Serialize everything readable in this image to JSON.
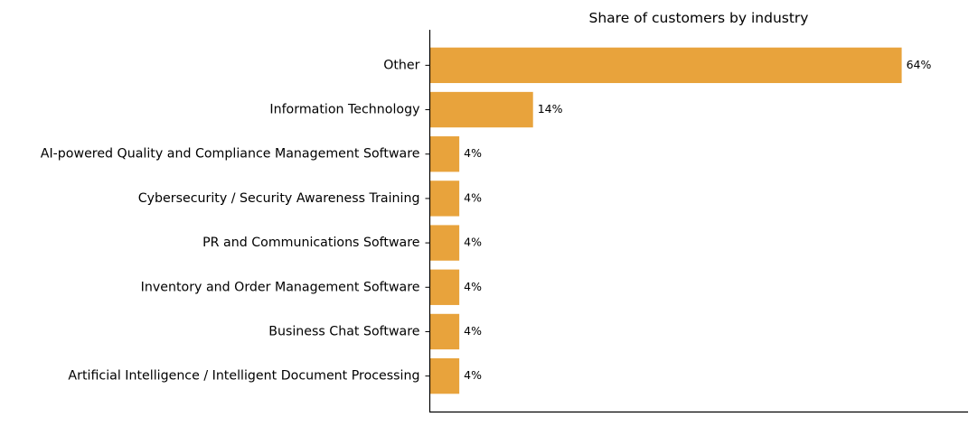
{
  "chart_data": {
    "type": "bar",
    "orientation": "horizontal",
    "title": "Share of customers by industry",
    "xlabel": "",
    "ylabel": "",
    "categories": [
      "Other",
      "Information Technology",
      "AI-powered Quality and Compliance Management Software",
      "Cybersecurity / Security Awareness Training",
      "PR and Communications Software",
      "Inventory and Order Management Software",
      "Business Chat Software",
      "Artificial Intelligence / Intelligent Document Processing"
    ],
    "values": [
      64,
      14,
      4,
      4,
      4,
      4,
      4,
      4
    ],
    "value_labels": [
      "64%",
      "14%",
      "4%",
      "4%",
      "4%",
      "4%",
      "4%",
      "4%"
    ],
    "xlim": [
      0,
      73
    ],
    "grid": false,
    "legend": "none",
    "bar_color": "#E8A33C",
    "spines": [
      "left",
      "bottom"
    ]
  }
}
